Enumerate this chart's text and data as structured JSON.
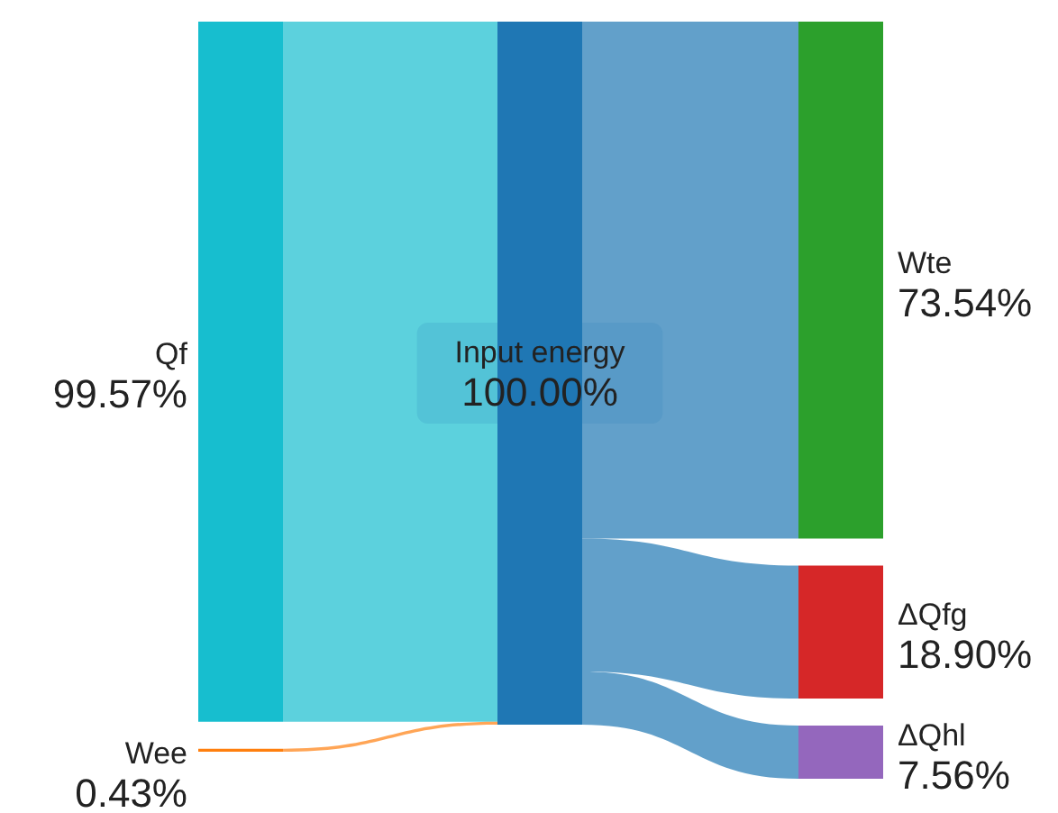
{
  "chart_data": {
    "type": "other",
    "categories": [
      "Qf",
      "Wee",
      "Input energy",
      "Wte",
      "ΔQfg",
      "ΔQhl"
    ],
    "values": [
      99.57,
      0.43,
      100,
      73.54,
      18.9,
      7.56
    ],
    "value_labels": [
      "99.57%",
      "0.43%",
      "100.00%",
      "73.54%",
      "18.90%",
      "7.56%"
    ],
    "colors": [
      "#17becf",
      "#ff7f0e",
      "#1f77b4",
      "#2ca02c",
      "#d62728",
      "#9467bd"
    ]
  }
}
